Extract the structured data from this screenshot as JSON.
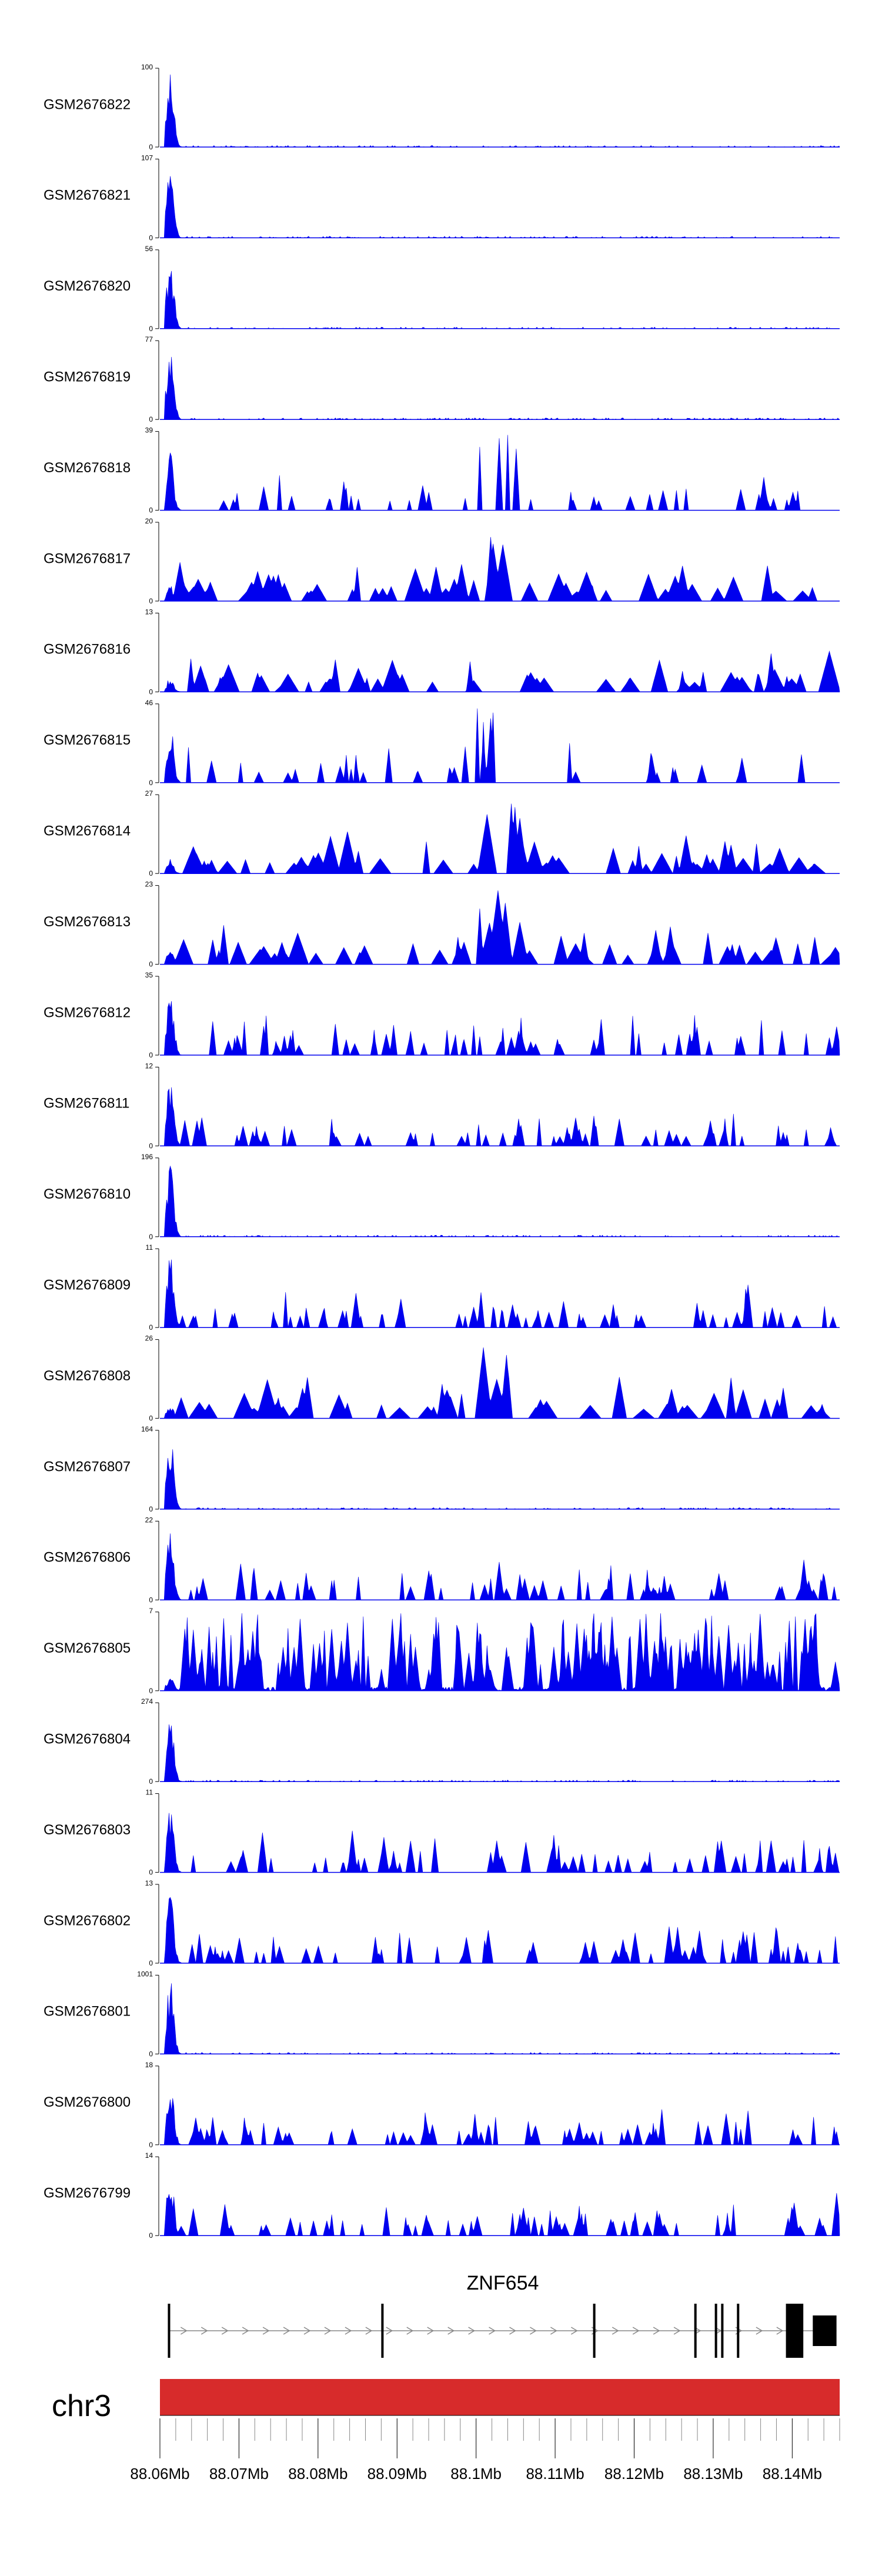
{
  "chart_data": {
    "type": "area",
    "title": "",
    "colors": {
      "signal": "#0000ee",
      "chromosome_bar": "#d72b2b",
      "gene": "#000000"
    },
    "x_axis": {
      "ticks": [
        88060000,
        88070000,
        88080000,
        88090000,
        88100000,
        88110000,
        88120000,
        88130000,
        88140000
      ],
      "tick_labels": [
        "88.06Mb",
        "88.07Mb",
        "88.08Mb",
        "88.09Mb",
        "88.1Mb",
        "88.11Mb",
        "88.12Mb",
        "88.13Mb",
        "88.14Mb"
      ],
      "range": [
        88060000,
        88146000
      ]
    },
    "gene": {
      "name": "ZNF654",
      "strand": "+",
      "exons": [
        [
          88061000,
          88061300
        ],
        [
          88088000,
          88088300
        ],
        [
          88114800,
          88115100
        ],
        [
          88127600,
          88127900
        ],
        [
          88130200,
          88130500
        ],
        [
          88131000,
          88131300
        ],
        [
          88133000,
          88133300
        ],
        [
          88139200,
          88141400
        ],
        [
          88142600,
          88145600
        ]
      ]
    },
    "chromosome": "chr3",
    "tracks": [
      {
        "name": "GSM2676822",
        "ymax": "100",
        "ymin": "0",
        "pattern": "tss"
      },
      {
        "name": "GSM2676821",
        "ymax": "107",
        "ymin": "0",
        "pattern": "tss"
      },
      {
        "name": "GSM2676820",
        "ymax": "56",
        "ymin": "0",
        "pattern": "tss"
      },
      {
        "name": "GSM2676819",
        "ymax": "77",
        "ymin": "0",
        "pattern": "tss"
      },
      {
        "name": "GSM2676818",
        "ymax": "39",
        "ymin": "0",
        "pattern": "sparse"
      },
      {
        "name": "GSM2676817",
        "ymax": "20",
        "ymin": "0",
        "pattern": "broad"
      },
      {
        "name": "GSM2676816",
        "ymax": "13",
        "ymin": "0",
        "pattern": "broad"
      },
      {
        "name": "GSM2676815",
        "ymax": "46",
        "ymin": "0",
        "pattern": "sparse"
      },
      {
        "name": "GSM2676814",
        "ymax": "27",
        "ymin": "0",
        "pattern": "broad"
      },
      {
        "name": "GSM2676813",
        "ymax": "23",
        "ymin": "0",
        "pattern": "broad"
      },
      {
        "name": "GSM2676812",
        "ymax": "35",
        "ymin": "0",
        "pattern": "tss_body"
      },
      {
        "name": "GSM2676811",
        "ymax": "12",
        "ymin": "0",
        "pattern": "tss_body"
      },
      {
        "name": "GSM2676810",
        "ymax": "196",
        "ymin": "0",
        "pattern": "tss"
      },
      {
        "name": "GSM2676809",
        "ymax": "11",
        "ymin": "0",
        "pattern": "tss_body"
      },
      {
        "name": "GSM2676808",
        "ymax": "26",
        "ymin": "0",
        "pattern": "broad"
      },
      {
        "name": "GSM2676807",
        "ymax": "164",
        "ymin": "0",
        "pattern": "tss"
      },
      {
        "name": "GSM2676806",
        "ymax": "22",
        "ymin": "0",
        "pattern": "tss_body"
      },
      {
        "name": "GSM2676805",
        "ymax": "7",
        "ymin": "0",
        "pattern": "dense"
      },
      {
        "name": "GSM2676804",
        "ymax": "274",
        "ymin": "0",
        "pattern": "tss"
      },
      {
        "name": "GSM2676803",
        "ymax": "11",
        "ymin": "0",
        "pattern": "tss_body"
      },
      {
        "name": "GSM2676802",
        "ymax": "13",
        "ymin": "0",
        "pattern": "tss_body"
      },
      {
        "name": "GSM2676801",
        "ymax": "1001",
        "ymin": "0",
        "pattern": "tss"
      },
      {
        "name": "GSM2676800",
        "ymax": "18",
        "ymin": "0",
        "pattern": "tss_body"
      },
      {
        "name": "GSM2676799",
        "ymax": "14",
        "ymin": "0",
        "pattern": "tss_body"
      }
    ]
  }
}
